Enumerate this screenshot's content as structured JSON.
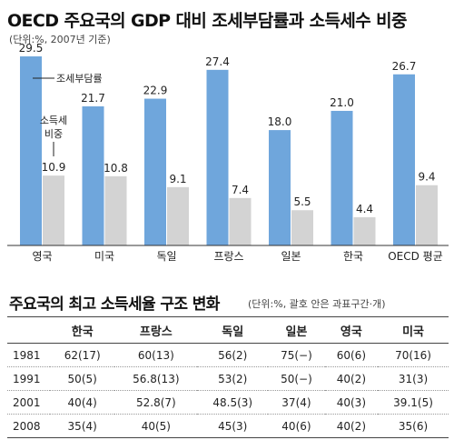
{
  "chart_data": {
    "type": "bar",
    "title": "OECD 주요국의 GDP 대비 조세부담률과 소득세수 비중",
    "subtitle": "(단위:%, 2007년 기준)",
    "categories": [
      "영국",
      "미국",
      "독일",
      "프랑스",
      "일본",
      "한국",
      "OECD 평균"
    ],
    "series": [
      {
        "name": "조세부담률",
        "values": [
          29.5,
          21.7,
          22.9,
          27.4,
          18.0,
          21.0,
          26.7
        ],
        "labels": [
          "29.5",
          "21.7",
          "22.9",
          "27.4",
          "18.0",
          "21.0",
          "26.7"
        ],
        "color": "#6fa6dc"
      },
      {
        "name": "소득세 비중",
        "values": [
          10.9,
          10.8,
          9.1,
          7.4,
          5.5,
          4.4,
          9.4
        ],
        "labels": [
          "10.9",
          "10.8",
          "9.1",
          "7.4",
          "5.5",
          "4.4",
          "9.4"
        ],
        "color": "#d3d3d3"
      }
    ],
    "legend": {
      "series1": "조세부담률",
      "series2_line1": "소득세",
      "series2_line2": "비중"
    },
    "ylim": [
      0,
      32
    ],
    "grid": false
  },
  "table": {
    "title": "주요국의 최고 소득세율 구조 변화",
    "subtitle": "(단위:%, 괄호 안은 과표구간·개)",
    "headers": [
      "",
      "한국",
      "프랑스",
      "독일",
      "일본",
      "영국",
      "미국"
    ],
    "rows": [
      [
        "1981",
        "62(17)",
        "60(13)",
        "56(2)",
        "75(−)",
        "60(6)",
        "70(16)"
      ],
      [
        "1991",
        "50(5)",
        "56.8(13)",
        "53(2)",
        "50(−)",
        "40(2)",
        "31(3)"
      ],
      [
        "2001",
        "40(4)",
        "52.8(7)",
        "48.5(3)",
        "37(4)",
        "40(3)",
        "39.1(5)"
      ],
      [
        "2008",
        "35(4)",
        "40(5)",
        "45(3)",
        "40(6)",
        "40(2)",
        "35(6)"
      ]
    ]
  }
}
